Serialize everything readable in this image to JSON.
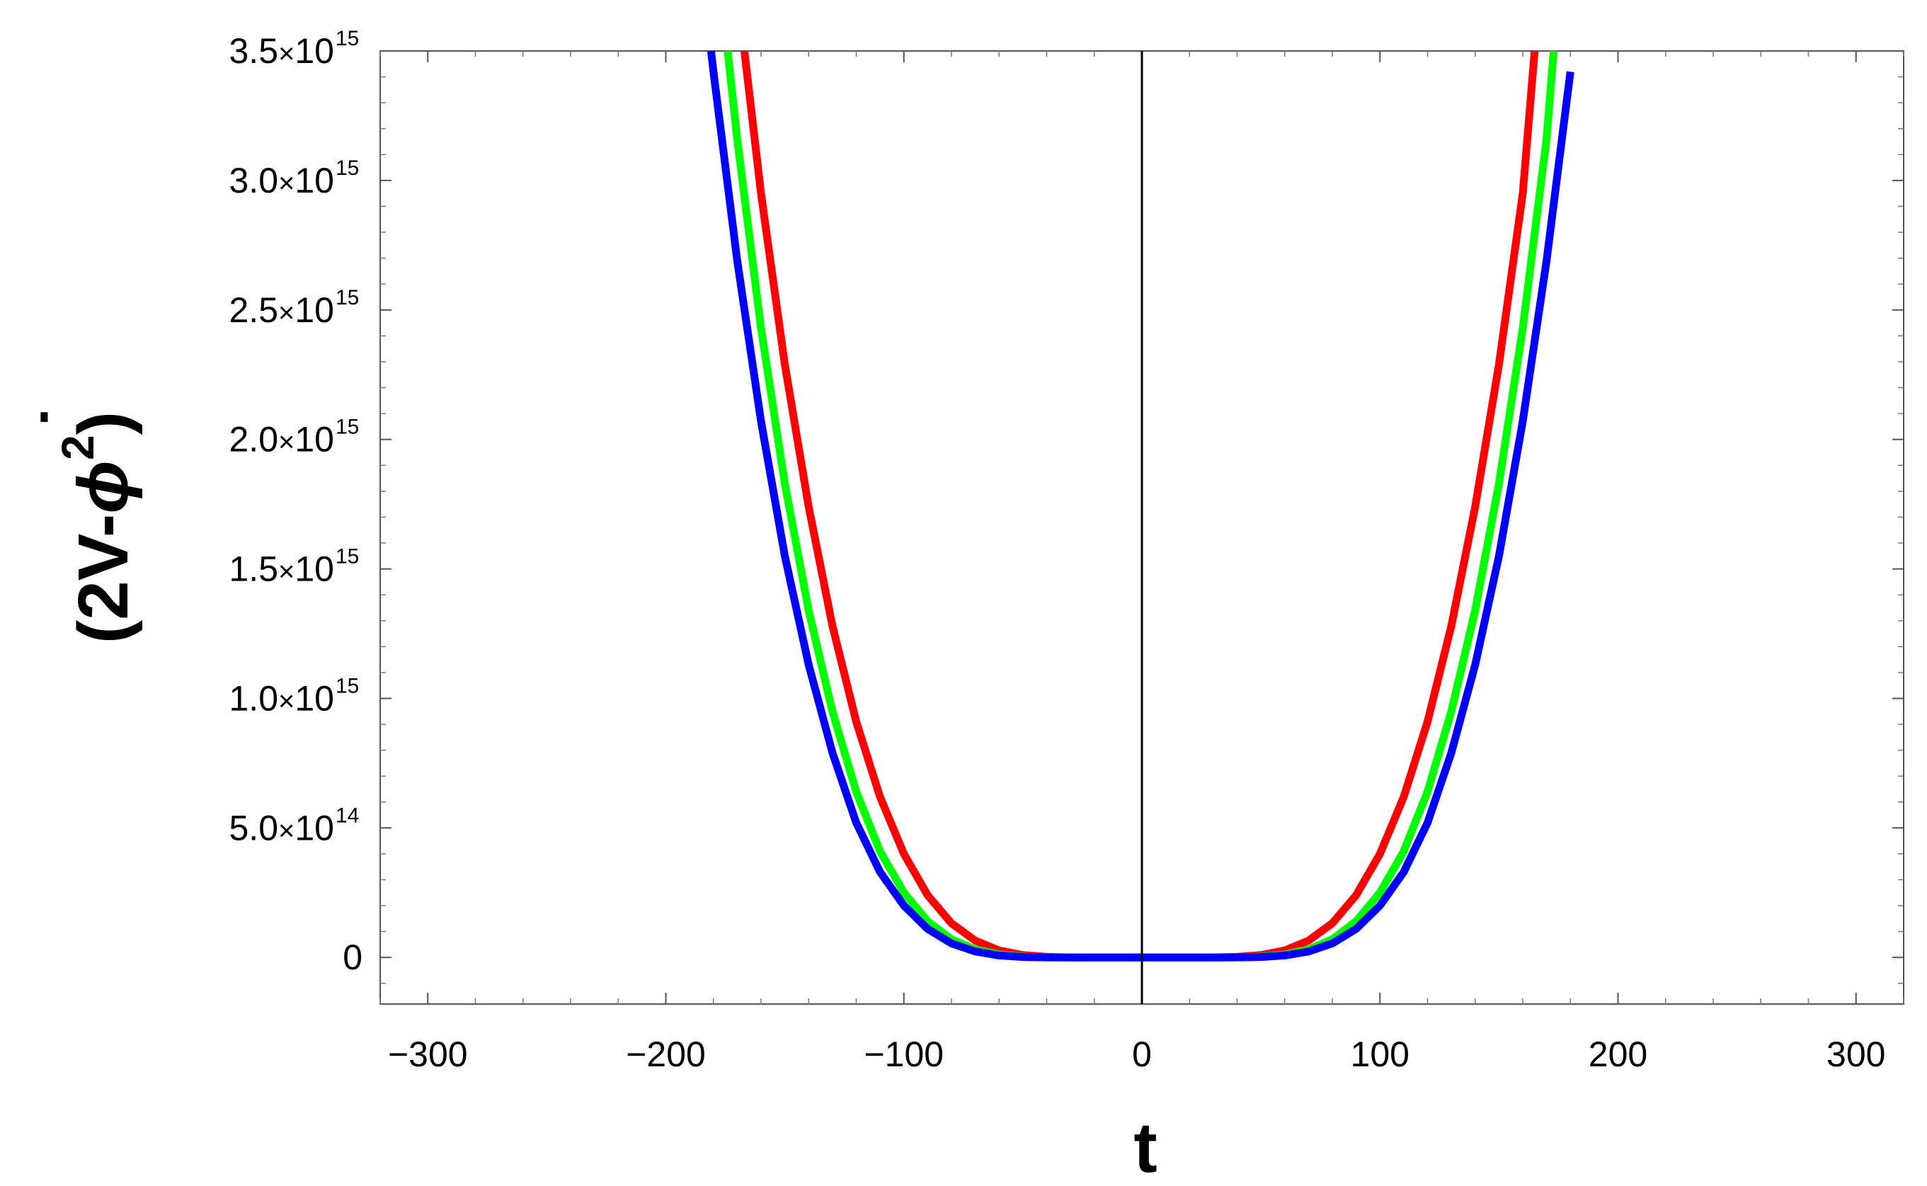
{
  "chart_data": {
    "type": "line",
    "title": "",
    "xlabel": "t",
    "ylabel": {
      "open": "(2V-",
      "symbol": "ϕ",
      "dot": "˙",
      "power": "2",
      "close": ")"
    },
    "xlim": [
      -320,
      320
    ],
    "ylim": [
      -180000000000000.0,
      3500000000000000.0
    ],
    "x_ticks": [
      {
        "value": -300,
        "label": "−300"
      },
      {
        "value": -200,
        "label": "−200"
      },
      {
        "value": -100,
        "label": "−100"
      },
      {
        "value": 0,
        "label": "0"
      },
      {
        "value": 100,
        "label": "100"
      },
      {
        "value": 200,
        "label": "200"
      },
      {
        "value": 300,
        "label": "300"
      }
    ],
    "y_ticks": [
      {
        "value": 0,
        "mantissa": "0",
        "times": "",
        "base": "",
        "exponent": ""
      },
      {
        "value": 500000000000000.0,
        "mantissa": "5.0",
        "times": "×",
        "base": "10",
        "exponent": "14"
      },
      {
        "value": 1000000000000000.0,
        "mantissa": "1.0",
        "times": "×",
        "base": "10",
        "exponent": "15"
      },
      {
        "value": 1500000000000000.0,
        "mantissa": "1.5",
        "times": "×",
        "base": "10",
        "exponent": "15"
      },
      {
        "value": 2000000000000000.0,
        "mantissa": "2.0",
        "times": "×",
        "base": "10",
        "exponent": "15"
      },
      {
        "value": 2500000000000000.0,
        "mantissa": "2.5",
        "times": "×",
        "base": "10",
        "exponent": "15"
      },
      {
        "value": 3000000000000000.0,
        "mantissa": "3.0",
        "times": "×",
        "base": "10",
        "exponent": "15"
      },
      {
        "value": 3500000000000000.0,
        "mantissa": "3.5",
        "times": "×",
        "base": "10",
        "exponent": "15"
      }
    ],
    "grid": false,
    "vertical_line_at_x": 0,
    "series": [
      {
        "color": "#ff0000",
        "x": [
          -167,
          -160,
          -150,
          -140,
          -130,
          -120,
          -110,
          -100,
          -90,
          -80,
          -70,
          -60,
          -50,
          -40,
          -30,
          -20,
          -10,
          0,
          10,
          20,
          30,
          40,
          50,
          60,
          70,
          80,
          90,
          100,
          110,
          120,
          130,
          140,
          150,
          160,
          165
        ],
        "y": [
          3500000000000000.0,
          2950000000000000.0,
          2290000000000000.0,
          1740000000000000.0,
          1280000000000000.0,
          910000000000000.0,
          620000000000000.0,
          400000000000000.0,
          240000000000000.0,
          132000000000000.0,
          65000000000000.0,
          27000000000000.0,
          9000000000000.0,
          2000000000000.0,
          200000000000.0,
          0,
          0,
          0,
          0,
          0,
          200000000000.0,
          2000000000000.0,
          9000000000000.0,
          27000000000000.0,
          65000000000000.0,
          132000000000000.0,
          240000000000000.0,
          400000000000000.0,
          620000000000000.0,
          910000000000000.0,
          1280000000000000.0,
          1740000000000000.0,
          2290000000000000.0,
          2950000000000000.0,
          3500000000000000.0
        ]
      },
      {
        "color": "#00ff00",
        "x": [
          -174,
          -170,
          -160,
          -150,
          -140,
          -130,
          -120,
          -110,
          -100,
          -90,
          -80,
          -70,
          -60,
          -50,
          -40,
          -30,
          -20,
          -10,
          0,
          10,
          20,
          30,
          40,
          50,
          60,
          70,
          80,
          90,
          100,
          110,
          120,
          130,
          140,
          150,
          160,
          170,
          173
        ],
        "y": [
          3500000000000000.0,
          3160000000000000.0,
          2430000000000000.0,
          1830000000000000.0,
          1340000000000000.0,
          950000000000000.0,
          640000000000000.0,
          410000000000000.0,
          250000000000000.0,
          140000000000000.0,
          70000000000000.0,
          31000000000000.0,
          11000000000000.0,
          2900000000000.0,
          400000000000.0,
          0,
          0,
          0,
          0,
          0,
          0,
          0,
          400000000000.0,
          2900000000000.0,
          11000000000000.0,
          31000000000000.0,
          70000000000000.0,
          140000000000000.0,
          250000000000000.0,
          410000000000000.0,
          640000000000000.0,
          950000000000000.0,
          1340000000000000.0,
          1830000000000000.0,
          2430000000000000.0,
          3160000000000000.0,
          3500000000000000.0
        ]
      },
      {
        "color": "#0000ff",
        "x": [
          -181,
          -180,
          -170,
          -160,
          -150,
          -140,
          -130,
          -120,
          -110,
          -100,
          -90,
          -80,
          -70,
          -60,
          -50,
          -40,
          -30,
          -20,
          -10,
          0,
          10,
          20,
          30,
          40,
          50,
          60,
          70,
          80,
          90,
          100,
          110,
          120,
          130,
          140,
          150,
          160,
          170,
          180
        ],
        "y": [
          3500000000000000.0,
          3420000000000000.0,
          2690000000000000.0,
          2070000000000000.0,
          1550000000000000.0,
          1130000000000000.0,
          790000000000000.0,
          520000000000000.0,
          330000000000000.0,
          200000000000000.0,
          110000000000000.0,
          54000000000000.0,
          23000000000000.0,
          7500000000000.0,
          1600000000000.0,
          150000000000.0,
          0,
          0,
          0,
          0,
          0,
          0,
          0,
          150000000000.0,
          1600000000000.0,
          7500000000000.0,
          23000000000000.0,
          54000000000000.0,
          110000000000000.0,
          200000000000000.0,
          330000000000000.0,
          520000000000000.0,
          790000000000000.0,
          1130000000000000.0,
          1550000000000000.0,
          2070000000000000.0,
          2690000000000000.0,
          3420000000000000.0
        ]
      }
    ]
  }
}
